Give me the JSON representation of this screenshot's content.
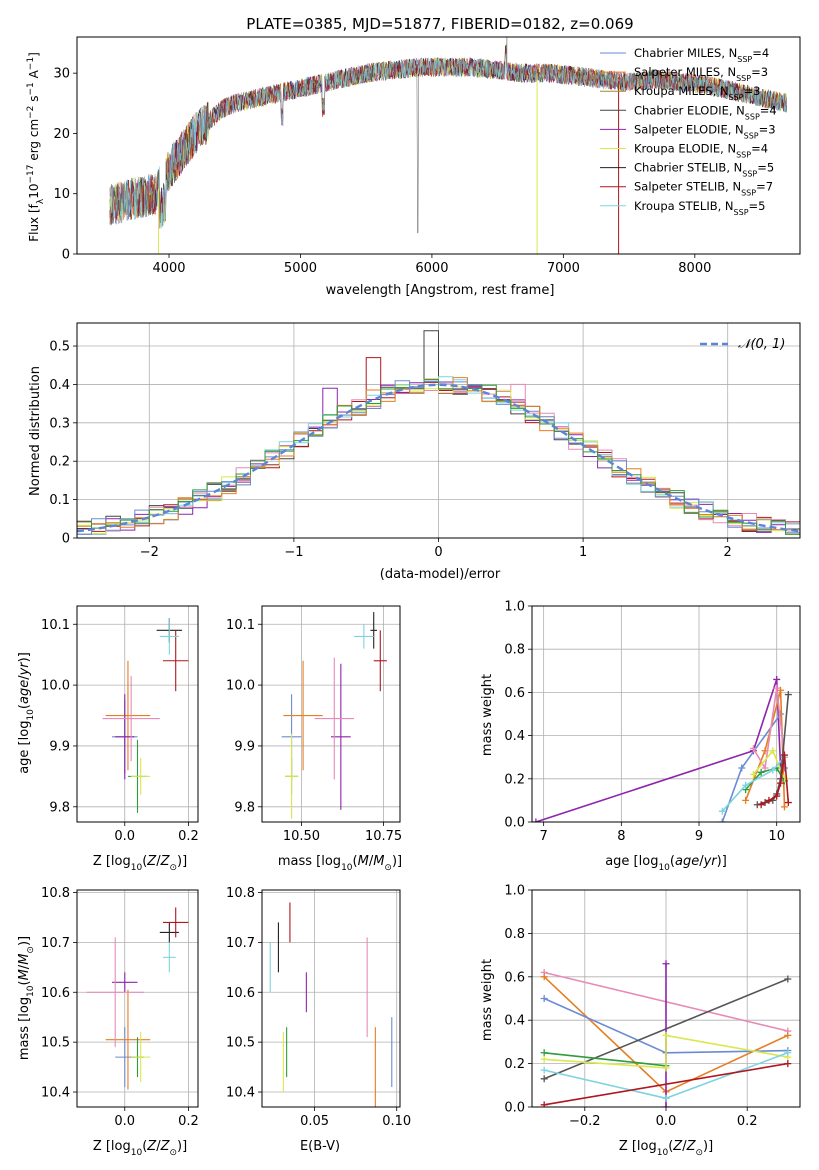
{
  "colors": [
    "#6a8bd4",
    "#e67e22",
    "#2e9c3a",
    "#222222",
    "#8e24aa",
    "#d9e84a",
    "#444444",
    "#b0171f",
    "#7ed3e0"
  ],
  "chart_data": [
    {
      "id": "spectrum",
      "type": "line",
      "title": "PLATE=0385, MJD=51877, FIBERID=0182, z=0.069",
      "xlabel": "wavelength [Angstrom, rest frame]",
      "ylabel": "Flux [f_λ10^-17 erg cm^-2 s^-1 A^-1]",
      "xlim": [
        3300,
        8800
      ],
      "ylim": [
        0,
        36
      ],
      "xticks": [
        4000,
        5000,
        6000,
        7000,
        8000
      ],
      "yticks": [
        0,
        10,
        20,
        30
      ],
      "legend_position": "top-right",
      "legend": [
        {
          "label": "Chabrier MILES, N",
          "sub": "SSP",
          "eq": "=4",
          "color": "#6a8bd4"
        },
        {
          "label": "Salpeter MILES, N",
          "sub": "SSP",
          "eq": "=3",
          "color": "#e67e22"
        },
        {
          "label": "Kroupa MILES, N",
          "sub": "SSP",
          "eq": "=3",
          "color": "#a0882a"
        },
        {
          "label": "Chabrier ELODIE, N",
          "sub": "SSP",
          "eq": "=4",
          "color": "#444444"
        },
        {
          "label": "Salpeter ELODIE, N",
          "sub": "SSP",
          "eq": "=3",
          "color": "#8e24aa"
        },
        {
          "label": "Kroupa ELODIE, N",
          "sub": "SSP",
          "eq": "=4",
          "color": "#d9e84a"
        },
        {
          "label": "Chabrier STELIB, N",
          "sub": "SSP",
          "eq": "=5",
          "color": "#222222"
        },
        {
          "label": "Salpeter STELIB, N",
          "sub": "SSP",
          "eq": "=7",
          "color": "#b0171f"
        },
        {
          "label": "Kroupa STELIB, N",
          "sub": "SSP",
          "eq": "=5",
          "color": "#7ed3e0"
        }
      ],
      "continuum": {
        "x": [
          3550,
          3700,
          3900,
          4000,
          4100,
          4200,
          4300,
          4400,
          4500,
          4700,
          4900,
          5100,
          5300,
          5500,
          5700,
          5900,
          6100,
          6300,
          6500,
          6700,
          6900,
          7100,
          7300,
          7500,
          7700,
          7900,
          8100,
          8300,
          8500,
          8700
        ],
        "y": [
          8,
          9,
          10,
          14,
          17,
          20,
          22,
          24,
          25,
          26,
          27,
          28,
          29,
          30,
          30.5,
          31,
          31,
          31,
          30.5,
          30,
          30,
          29.5,
          29,
          28.5,
          29,
          28.5,
          28,
          27,
          26,
          25
        ]
      }
    },
    {
      "id": "residual_hist",
      "type": "bar",
      "xlabel": "(data-model)/error",
      "ylabel": "Normed distribution",
      "xlim": [
        -2.5,
        2.5
      ],
      "ylim": [
        0,
        0.56
      ],
      "xticks": [
        -2,
        -1,
        0,
        1,
        2
      ],
      "xtick_labels": [
        "−2",
        "−1",
        "0",
        "1",
        "2"
      ],
      "yticks": [
        0.0,
        0.1,
        0.2,
        0.3,
        0.4,
        0.5
      ],
      "legend": [
        {
          "label": "𝒩(0, 1)",
          "color": "#5b86d6",
          "style": "dashed"
        }
      ],
      "legend_position": "top-right",
      "bin_width": 0.1,
      "spikes": {
        "-0.1": 0.54,
        "-0.5": 0.47,
        "-0.8": 0.39,
        "0.5": 0.4
      }
    },
    {
      "id": "age_vs_Z",
      "type": "scatter",
      "xlabel": "Z [log10(Z/Z⊙)]",
      "ylabel": "age [log10(age/yr)]",
      "xlim": [
        -0.15,
        0.23
      ],
      "ylim": [
        9.775,
        10.13
      ],
      "xticks": [
        0.0,
        0.2
      ],
      "xtick_labels": [
        "0.0",
        "0.2"
      ],
      "yticks": [
        9.8,
        9.9,
        10.0,
        10.1
      ],
      "ytick_labels": [
        "9.8",
        "9.9",
        "10.0",
        "10.1"
      ],
      "points": [
        {
          "x": 0.0,
          "y": 9.915,
          "xerr": 0.04,
          "yerr": 0.06,
          "c": 0
        },
        {
          "x": 0.01,
          "y": 9.95,
          "xerr": 0.07,
          "yerr": 0.09,
          "c": 1
        },
        {
          "x": 0.04,
          "y": 9.85,
          "xerr": 0.03,
          "yerr": 0.06,
          "c": 2
        },
        {
          "x": 0.0,
          "y": 9.915,
          "xerr": 0.03,
          "yerr": 0.07,
          "c": 4
        },
        {
          "x": 0.02,
          "y": 9.945,
          "xerr": 0.09,
          "yerr": 0.07,
          "c": 9
        },
        {
          "x": 0.05,
          "y": 9.85,
          "xerr": 0.03,
          "yerr": 0.03,
          "c": 5
        },
        {
          "x": 0.14,
          "y": 10.09,
          "xerr": 0.04,
          "yerr": 0.02,
          "c": 3
        },
        {
          "x": 0.16,
          "y": 10.04,
          "xerr": 0.04,
          "yerr": 0.05,
          "c": 7
        },
        {
          "x": 0.14,
          "y": 10.08,
          "xerr": 0.03,
          "yerr": 0.03,
          "c": 8
        }
      ]
    },
    {
      "id": "age_vs_mass",
      "type": "scatter",
      "xlabel": "mass [log10(M/M⊙)]",
      "ylabel": "",
      "xlim": [
        10.38,
        10.8
      ],
      "ylim": [
        9.775,
        10.13
      ],
      "xticks": [
        10.5,
        10.75
      ],
      "xtick_labels": [
        "10.50",
        "10.75"
      ],
      "yticks": [
        9.8,
        9.9,
        10.0,
        10.1
      ],
      "ytick_labels": [
        "9.8",
        "9.9",
        "10.0",
        "10.1"
      ],
      "points": [
        {
          "x": 10.47,
          "y": 9.915,
          "xerr": 0.03,
          "yerr": 0.07,
          "c": 0
        },
        {
          "x": 10.505,
          "y": 9.95,
          "xerr": 0.06,
          "yerr": 0.09,
          "c": 1
        },
        {
          "x": 10.47,
          "y": 9.85,
          "xerr": 0.02,
          "yerr": 0.03,
          "c": 2
        },
        {
          "x": 10.62,
          "y": 9.915,
          "xerr": 0.03,
          "yerr": 0.12,
          "c": 4
        },
        {
          "x": 10.6,
          "y": 9.945,
          "xerr": 0.06,
          "yerr": 0.1,
          "c": 9
        },
        {
          "x": 10.47,
          "y": 9.85,
          "xerr": 0.02,
          "yerr": 0.07,
          "c": 5
        },
        {
          "x": 10.72,
          "y": 10.09,
          "xerr": 0.01,
          "yerr": 0.03,
          "c": 3
        },
        {
          "x": 10.74,
          "y": 10.04,
          "xerr": 0.02,
          "yerr": 0.05,
          "c": 7
        },
        {
          "x": 10.69,
          "y": 10.08,
          "xerr": 0.03,
          "yerr": 0.02,
          "c": 8
        }
      ]
    },
    {
      "id": "weight_vs_age",
      "type": "line",
      "xlabel": "age [log10(age/yr)]",
      "ylabel": "mass weight",
      "xlim": [
        6.85,
        10.3
      ],
      "ylim": [
        0,
        1.0
      ],
      "xticks": [
        7,
        8,
        9,
        10
      ],
      "xtick_labels": [
        "7",
        "8",
        "9",
        "10"
      ],
      "yticks": [
        0.0,
        0.2,
        0.4,
        0.6,
        0.8,
        1.0
      ],
      "ytick_labels": [
        "0.0",
        "0.2",
        "0.4",
        "0.6",
        "0.8",
        "1.0"
      ],
      "series": [
        {
          "c": 4,
          "x": [
            6.9,
            9.7,
            10.0,
            10.05
          ],
          "y": [
            0.0,
            0.33,
            0.66,
            0.25
          ]
        },
        {
          "c": 0,
          "x": [
            9.3,
            9.55,
            10.05,
            10.1
          ],
          "y": [
            0.0,
            0.25,
            0.5,
            0.25
          ]
        },
        {
          "c": 1,
          "x": [
            9.6,
            9.85,
            10.05,
            10.1
          ],
          "y": [
            0.1,
            0.33,
            0.61,
            0.07
          ]
        },
        {
          "c": 9,
          "x": [
            9.7,
            9.85,
            10.0,
            10.1
          ],
          "y": [
            0.34,
            0.25,
            0.62,
            0.3
          ]
        },
        {
          "c": 2,
          "x": [
            9.6,
            9.8,
            10.0,
            10.1
          ],
          "y": [
            0.15,
            0.23,
            0.25,
            0.19
          ]
        },
        {
          "c": 5,
          "x": [
            9.7,
            9.95,
            10.1
          ],
          "y": [
            0.22,
            0.33,
            0.2
          ]
        },
        {
          "c": 8,
          "x": [
            9.3,
            9.6,
            9.95,
            10.1
          ],
          "y": [
            0.05,
            0.17,
            0.24,
            0.3
          ]
        },
        {
          "c": 6,
          "x": [
            9.75,
            9.85,
            9.95,
            10.0,
            10.05,
            10.15
          ],
          "y": [
            0.08,
            0.09,
            0.1,
            0.13,
            0.2,
            0.59
          ]
        },
        {
          "c": 7,
          "x": [
            9.8,
            9.9,
            10.0,
            10.05,
            10.1,
            10.15
          ],
          "y": [
            0.08,
            0.1,
            0.12,
            0.18,
            0.31,
            0.09
          ]
        }
      ]
    },
    {
      "id": "mass_vs_Z",
      "type": "scatter",
      "xlabel": "Z [log10(Z/Z⊙)]",
      "ylabel": "mass [log10(M/M⊙)]",
      "xlim": [
        -0.15,
        0.23
      ],
      "ylim": [
        10.37,
        10.805
      ],
      "xticks": [
        0.0,
        0.2
      ],
      "xtick_labels": [
        "0.0",
        "0.2"
      ],
      "yticks": [
        10.4,
        10.5,
        10.6,
        10.7,
        10.8
      ],
      "ytick_labels": [
        "10.4",
        "10.5",
        "10.6",
        "10.7",
        "10.8"
      ],
      "points": [
        {
          "x": 0.0,
          "y": 10.47,
          "xerr": 0.03,
          "yerr": 0.06,
          "c": 0
        },
        {
          "x": 0.01,
          "y": 10.505,
          "xerr": 0.07,
          "yerr": 0.1,
          "c": 1
        },
        {
          "x": 0.04,
          "y": 10.47,
          "xerr": 0.02,
          "yerr": 0.04,
          "c": 2
        },
        {
          "x": 0.0,
          "y": 10.62,
          "xerr": 0.04,
          "yerr": 0.02,
          "c": 4
        },
        {
          "x": -0.03,
          "y": 10.6,
          "xerr": 0.09,
          "yerr": 0.11,
          "c": 9
        },
        {
          "x": 0.05,
          "y": 10.47,
          "xerr": 0.03,
          "yerr": 0.05,
          "c": 5
        },
        {
          "x": 0.14,
          "y": 10.72,
          "xerr": 0.03,
          "yerr": 0.02,
          "c": 3
        },
        {
          "x": 0.16,
          "y": 10.74,
          "xerr": 0.04,
          "yerr": 0.03,
          "c": 7
        },
        {
          "x": 0.14,
          "y": 10.67,
          "xerr": 0.02,
          "yerr": 0.03,
          "c": 8
        }
      ]
    },
    {
      "id": "mass_vs_ebv",
      "type": "scatter",
      "xlabel": "E(B-V)",
      "ylabel": "",
      "xlim": [
        0.018,
        0.102
      ],
      "ylim": [
        10.37,
        10.805
      ],
      "xticks": [
        0.05,
        0.1
      ],
      "xtick_labels": [
        "0.05",
        "0.10"
      ],
      "yticks": [
        10.4,
        10.5,
        10.6,
        10.7,
        10.8
      ],
      "ytick_labels": [
        "10.4",
        "10.5",
        "10.6",
        "10.7",
        "10.8"
      ],
      "points": [
        {
          "x": 0.097,
          "y": 10.48,
          "xerr": 0,
          "yerr": 0.07,
          "c": 0
        },
        {
          "x": 0.087,
          "y": 10.45,
          "xerr": 0,
          "yerr": 0.08,
          "c": 1
        },
        {
          "x": 0.033,
          "y": 10.48,
          "xerr": 0,
          "yerr": 0.05,
          "c": 2
        },
        {
          "x": 0.045,
          "y": 10.6,
          "xerr": 0,
          "yerr": 0.04,
          "c": 4
        },
        {
          "x": 0.082,
          "y": 10.61,
          "xerr": 0,
          "yerr": 0.1,
          "c": 9
        },
        {
          "x": 0.031,
          "y": 10.46,
          "xerr": 0,
          "yerr": 0.06,
          "c": 5
        },
        {
          "x": 0.028,
          "y": 10.69,
          "xerr": 0,
          "yerr": 0.05,
          "c": 3
        },
        {
          "x": 0.035,
          "y": 10.74,
          "xerr": 0,
          "yerr": 0.04,
          "c": 7
        },
        {
          "x": 0.023,
          "y": 10.65,
          "xerr": 0,
          "yerr": 0.05,
          "c": 8
        }
      ]
    },
    {
      "id": "weight_vs_Z",
      "type": "line",
      "xlabel": "Z [log10(Z/Z⊙)]",
      "ylabel": "mass weight",
      "xlim": [
        -0.33,
        0.33
      ],
      "ylim": [
        0,
        1.0
      ],
      "xticks": [
        -0.2,
        0.0,
        0.2
      ],
      "xtick_labels": [
        "−0.2",
        "0.0",
        "0.2"
      ],
      "yticks": [
        0.0,
        0.2,
        0.4,
        0.6,
        0.8,
        1.0
      ],
      "ytick_labels": [
        "0.0",
        "0.2",
        "0.4",
        "0.6",
        "0.8",
        "1.0"
      ],
      "series": [
        {
          "c": 9,
          "x": [
            -0.3,
            0.3
          ],
          "y": [
            0.62,
            0.35
          ]
        },
        {
          "c": 1,
          "x": [
            -0.3,
            0.0,
            0.3
          ],
          "y": [
            0.6,
            0.07,
            0.33
          ]
        },
        {
          "c": 0,
          "x": [
            -0.3,
            0.0,
            0.3
          ],
          "y": [
            0.5,
            0.25,
            0.26
          ]
        },
        {
          "c": 6,
          "x": [
            -0.3,
            0.3
          ],
          "y": [
            0.13,
            0.59
          ]
        },
        {
          "c": 4,
          "x": [
            0.0,
            0.0
          ],
          "y": [
            0.0,
            0.66
          ]
        },
        {
          "c": 2,
          "x": [
            -0.3,
            0.0
          ],
          "y": [
            0.25,
            0.19
          ]
        },
        {
          "c": 5,
          "x": [
            -0.3,
            0.0,
            0.0,
            0.3
          ],
          "y": [
            0.22,
            0.18,
            0.33,
            0.23
          ]
        },
        {
          "c": 8,
          "x": [
            -0.3,
            0.0,
            0.3
          ],
          "y": [
            0.17,
            0.04,
            0.25
          ]
        },
        {
          "c": 7,
          "x": [
            -0.3,
            0.3
          ],
          "y": [
            0.01,
            0.2
          ]
        }
      ]
    }
  ]
}
